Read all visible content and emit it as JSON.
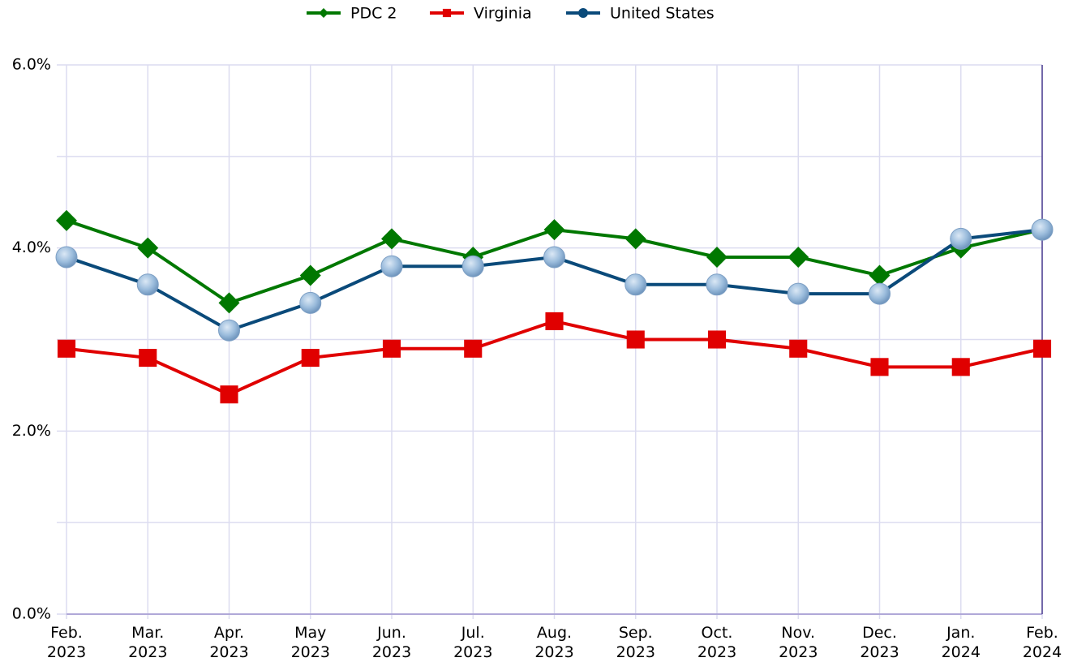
{
  "chart_data": {
    "type": "line",
    "categories": [
      "Feb.\n2023",
      "Mar.\n2023",
      "Apr.\n2023",
      "May\n2023",
      "Jun.\n2023",
      "Jul.\n2023",
      "Aug.\n2023",
      "Sep.\n2023",
      "Oct.\n2023",
      "Nov.\n2023",
      "Dec.\n2023",
      "Jan.\n2024",
      "Feb.\n2024"
    ],
    "series": [
      {
        "name": "PDC 2",
        "color": "#007800",
        "marker": "diamond",
        "values": [
          4.3,
          4.0,
          3.4,
          3.7,
          4.1,
          3.9,
          4.2,
          4.1,
          3.9,
          3.9,
          3.7,
          4.0,
          4.2
        ]
      },
      {
        "name": "Virginia",
        "color": "#e00000",
        "marker": "square",
        "values": [
          2.9,
          2.8,
          2.4,
          2.8,
          2.9,
          2.9,
          3.2,
          3.0,
          3.0,
          2.9,
          2.7,
          2.7,
          2.9
        ]
      },
      {
        "name": "United States",
        "color": "#0a4a7a",
        "marker": "circle",
        "values": [
          3.9,
          3.6,
          3.1,
          3.4,
          3.8,
          3.8,
          3.9,
          3.6,
          3.6,
          3.5,
          3.5,
          4.1,
          4.2
        ]
      }
    ],
    "ylim": [
      0,
      6
    ],
    "yticks": [
      {
        "value": 0,
        "label": "0.0%"
      },
      {
        "value": 2,
        "label": "2.0%"
      },
      {
        "value": 4,
        "label": "4.0%"
      },
      {
        "value": 6,
        "label": "6.0%"
      }
    ],
    "yminorticks": [
      1,
      3,
      5
    ],
    "grid": true,
    "legend": "top"
  }
}
